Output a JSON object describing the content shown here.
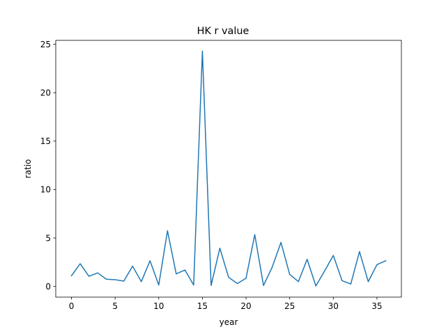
{
  "chart_data": {
    "type": "line",
    "title": "HK r value",
    "xlabel": "year",
    "ylabel": "ratio",
    "xlim": [
      -1.8,
      37.8
    ],
    "ylim": [
      -1.1,
      25.4
    ],
    "xticks": [
      0,
      5,
      10,
      15,
      20,
      25,
      30,
      35
    ],
    "yticks": [
      0,
      5,
      10,
      15,
      20,
      25
    ],
    "grid": false,
    "series": [
      {
        "color": "#1f77b4",
        "x": [
          0,
          1,
          2,
          3,
          4,
          5,
          6,
          7,
          8,
          9,
          10,
          11,
          12,
          13,
          14,
          15,
          16,
          17,
          18,
          19,
          20,
          21,
          22,
          23,
          24,
          25,
          26,
          27,
          28,
          29,
          30,
          31,
          32,
          33,
          34,
          35,
          36
        ],
        "values": [
          1.1,
          2.35,
          1.05,
          1.4,
          0.75,
          0.7,
          0.55,
          2.1,
          0.5,
          2.65,
          0.15,
          5.75,
          1.3,
          1.7,
          0.15,
          24.3,
          0.1,
          3.95,
          0.95,
          0.3,
          0.85,
          5.35,
          0.1,
          2.0,
          4.55,
          1.25,
          0.5,
          2.8,
          0.05,
          1.6,
          3.2,
          0.6,
          0.25,
          3.6,
          0.5,
          2.25,
          2.65
        ]
      }
    ]
  }
}
